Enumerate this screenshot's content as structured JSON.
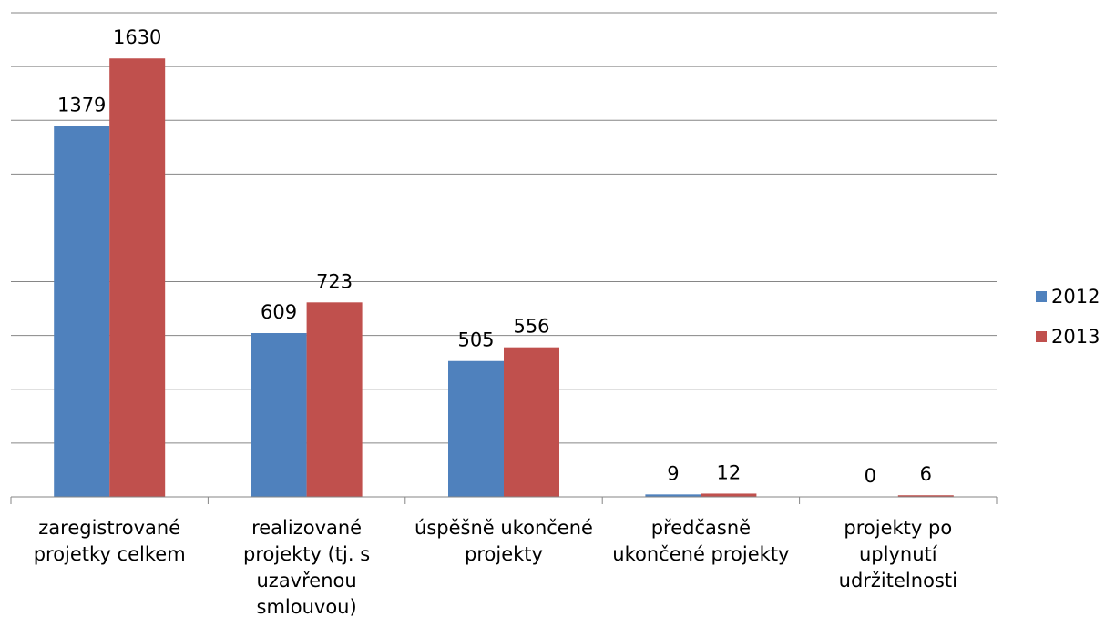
{
  "chart_data": {
    "type": "bar",
    "categories": [
      "zaregistrované\nprojetky celkem",
      "realizované\nprojekty (tj. s\nuzavřenou\nsmlouvou)",
      "úspěšně ukončené\nprojekty",
      "předčasně\nukončené projekty",
      "projekty po\nuplynutí\nudržitelnosti"
    ],
    "series": [
      {
        "name": "2012",
        "color": "#4F81BD",
        "values": [
          1379,
          609,
          505,
          9,
          0
        ]
      },
      {
        "name": "2013",
        "color": "#C0504D",
        "values": [
          1630,
          723,
          556,
          12,
          6
        ]
      }
    ],
    "ylim": [
      0,
      1800
    ],
    "grid": true,
    "legend": "right",
    "title": "",
    "xlabel": "",
    "ylabel": ""
  }
}
